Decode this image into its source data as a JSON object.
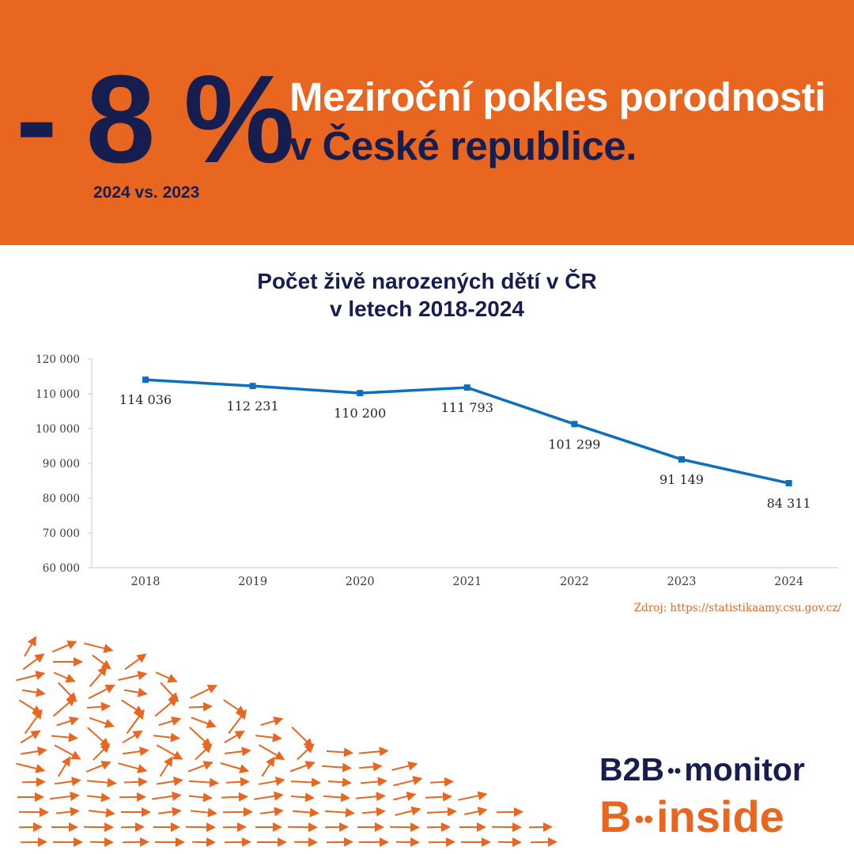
{
  "header": {
    "big_stat": "- 8 %",
    "comparison": "2024 vs. 2023",
    "headline_line1": "Meziroční pokles porodnosti",
    "headline_line2": "v České republice."
  },
  "chart_data": {
    "type": "line",
    "title": "Počet živě narozených dětí v ČR",
    "subtitle": "v letech 2018-2024",
    "categories": [
      "2018",
      "2019",
      "2020",
      "2021",
      "2022",
      "2023",
      "2024"
    ],
    "values": [
      114036,
      112231,
      110200,
      111793,
      101299,
      91149,
      84311
    ],
    "value_labels": [
      "114 036",
      "112 231",
      "110 200",
      "111 793",
      "101 299",
      "91 149",
      "84 311"
    ],
    "y_ticks": [
      60000,
      70000,
      80000,
      90000,
      100000,
      110000,
      120000
    ],
    "y_tick_labels": [
      "60 000",
      "70 000",
      "80 000",
      "90 000",
      "100 000",
      "110 000",
      "120 000"
    ],
    "ylim": [
      60000,
      120000
    ],
    "xlabel": "",
    "ylabel": "",
    "series_color": "#0d6fbf",
    "grid": false
  },
  "source": "Zdroj: https://statistikaamy.csu.gov.cz/",
  "logo": {
    "top_left": "B2B",
    "top_dots": "••",
    "top_right": "monitor",
    "bottom_left": "B",
    "bottom_dots": "••",
    "bottom_right": "inside"
  },
  "colors": {
    "accent": "#e8661f",
    "navy": "#161d4f"
  }
}
